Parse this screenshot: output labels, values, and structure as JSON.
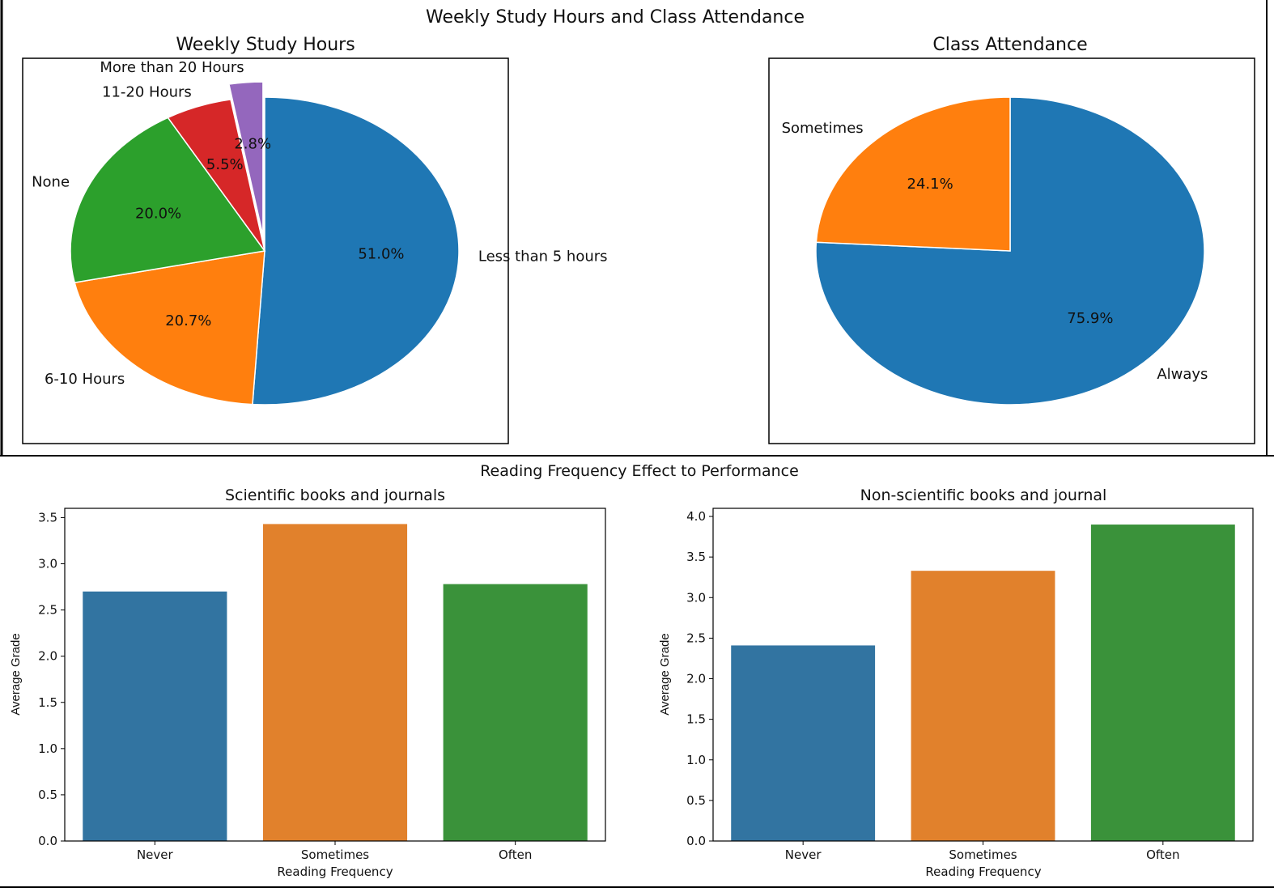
{
  "top_figure": {
    "title": "Weekly Study Hours and Class Attendance"
  },
  "bottom_figure": {
    "title": "Reading Frequency Effect to Performance"
  },
  "chart_data": [
    {
      "type": "pie",
      "title": "Weekly Study Hours",
      "labels": [
        "Less than 5 hours",
        "6-10 Hours",
        "None",
        "11-20 Hours",
        "More than 20 Hours"
      ],
      "values": [
        51.0,
        20.7,
        20.0,
        5.5,
        2.8
      ],
      "value_labels": [
        "51.0%",
        "20.7%",
        "20.0%",
        "5.5%",
        "2.8%"
      ],
      "colors": [
        "#1f77b4",
        "#ff7f0e",
        "#2ca02c",
        "#d62728",
        "#9467bd"
      ],
      "start_angle_deg": 90,
      "direction": "clockwise",
      "exploded": [
        false,
        false,
        false,
        false,
        true
      ]
    },
    {
      "type": "pie",
      "title": "Class Attendance",
      "labels": [
        "Always",
        "Sometimes"
      ],
      "values": [
        75.9,
        24.1
      ],
      "value_labels": [
        "75.9%",
        "24.1%"
      ],
      "colors": [
        "#1f77b4",
        "#ff7f0e"
      ],
      "start_angle_deg": 90,
      "direction": "clockwise"
    },
    {
      "type": "bar",
      "title": "Scientific books and journals",
      "categories": [
        "Never",
        "Sometimes",
        "Often"
      ],
      "values": [
        2.7,
        3.43,
        2.78
      ],
      "colors": [
        "#3274a1",
        "#e1812c",
        "#3a923a"
      ],
      "xlabel": "Reading Frequency",
      "ylabel": "Average Grade",
      "ylim": [
        0,
        3.6
      ],
      "yticks": [
        "0.0",
        "0.5",
        "1.0",
        "1.5",
        "2.0",
        "2.5",
        "3.0",
        "3.5"
      ],
      "grid": false
    },
    {
      "type": "bar",
      "title": "Non-scientific books and journal",
      "categories": [
        "Never",
        "Sometimes",
        "Often"
      ],
      "values": [
        2.41,
        3.33,
        3.9
      ],
      "colors": [
        "#3274a1",
        "#e1812c",
        "#3a923a"
      ],
      "xlabel": "Reading Frequency",
      "ylabel": "Average Grade",
      "ylim": [
        0,
        4.1
      ],
      "yticks": [
        "0.0",
        "0.5",
        "1.0",
        "1.5",
        "2.0",
        "2.5",
        "3.0",
        "3.5",
        "4.0"
      ],
      "grid": false
    }
  ]
}
